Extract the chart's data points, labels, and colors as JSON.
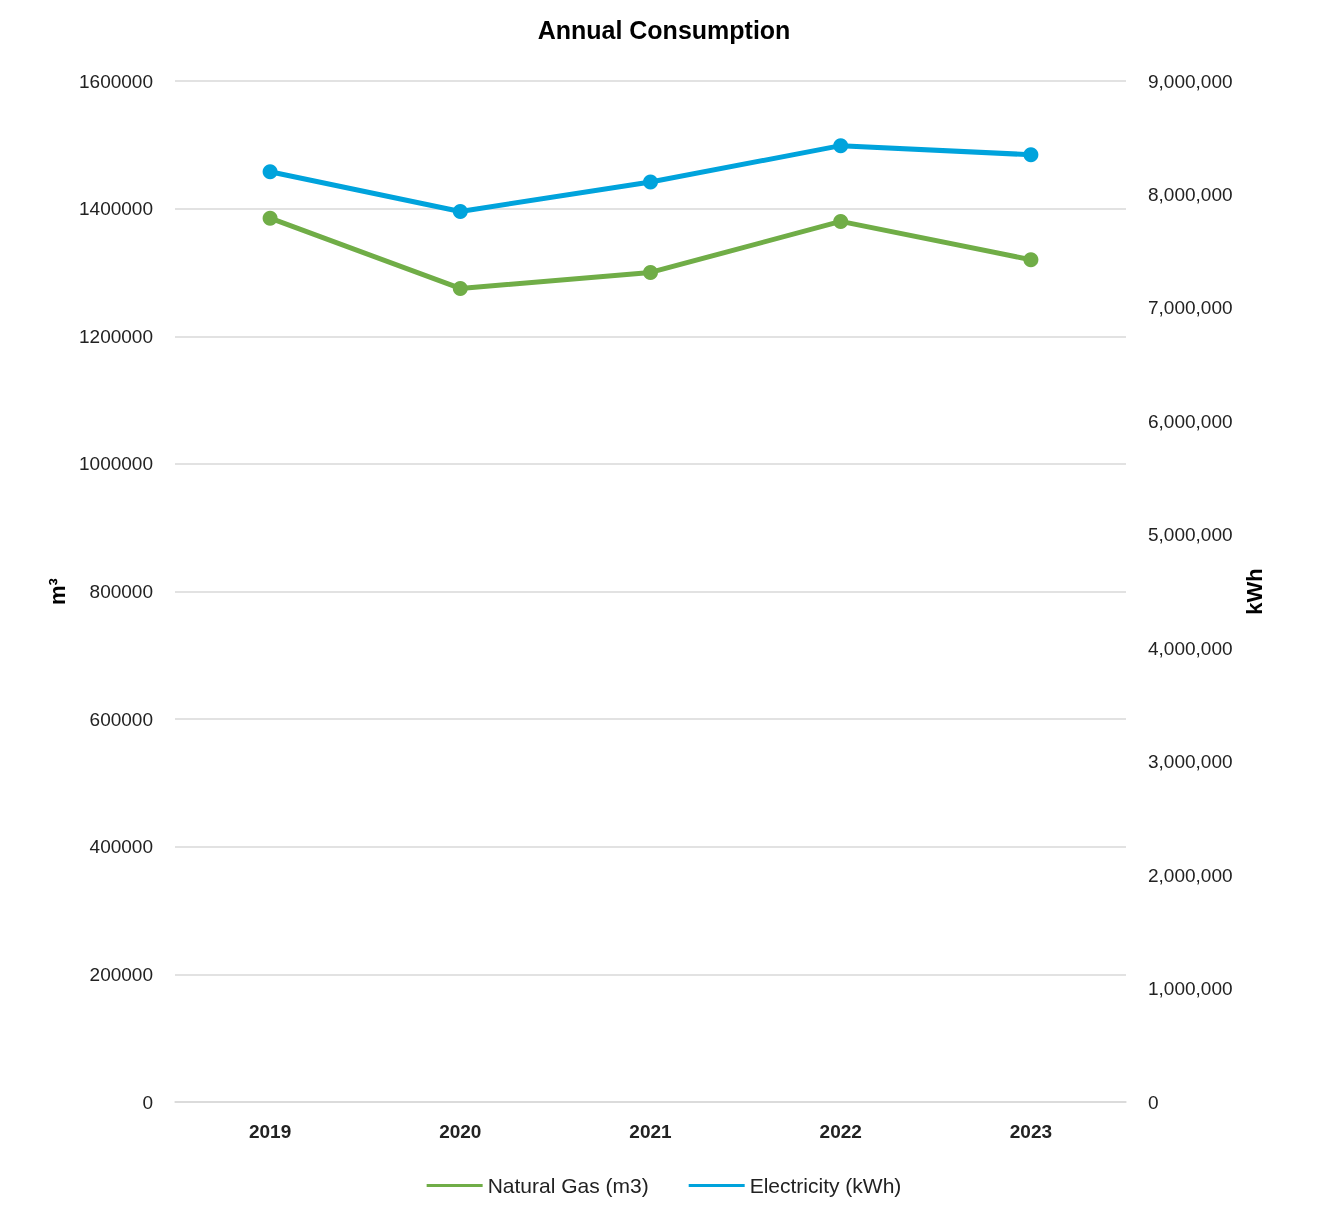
{
  "chart_data": {
    "type": "line",
    "title": "Annual Consumption",
    "ylabel": "m³",
    "y2label": "kWh",
    "categories": [
      "2019",
      "2020",
      "2021",
      "2022",
      "2023"
    ],
    "series": [
      {
        "name": "Natural Gas (m3)",
        "color": "#70ad47",
        "values": [
          1385000,
          1275000,
          1300000,
          1380000,
          1320000
        ]
      },
      {
        "name": "Electricity (kWh)",
        "color": "#00a3dc",
        "axis": "y2",
        "values": [
          8200000,
          7850000,
          8110000,
          8430000,
          8350000
        ]
      }
    ],
    "ylim": [
      0,
      1600000
    ],
    "yticks": [
      0,
      200000,
      400000,
      600000,
      800000,
      1000000,
      1200000,
      1400000,
      1600000
    ],
    "y2lim": [
      0,
      9000000
    ],
    "y2ticks": [
      {
        "value": 0,
        "label": "0"
      },
      {
        "value": 1000000,
        "label": "1,000,000"
      },
      {
        "value": 2000000,
        "label": "2,000,000"
      },
      {
        "value": 3000000,
        "label": "3,000,000"
      },
      {
        "value": 4000000,
        "label": "4,000,000"
      },
      {
        "value": 5000000,
        "label": "5,000,000"
      },
      {
        "value": 6000000,
        "label": "6,000,000"
      },
      {
        "value": 7000000,
        "label": "7,000,000"
      },
      {
        "value": 8000000,
        "label": "8,000,000"
      },
      {
        "value": 9000000,
        "label": "9,000,000"
      }
    ],
    "grid": "y",
    "legend": "bottom",
    "marker": "circle",
    "line_style": "solid"
  }
}
